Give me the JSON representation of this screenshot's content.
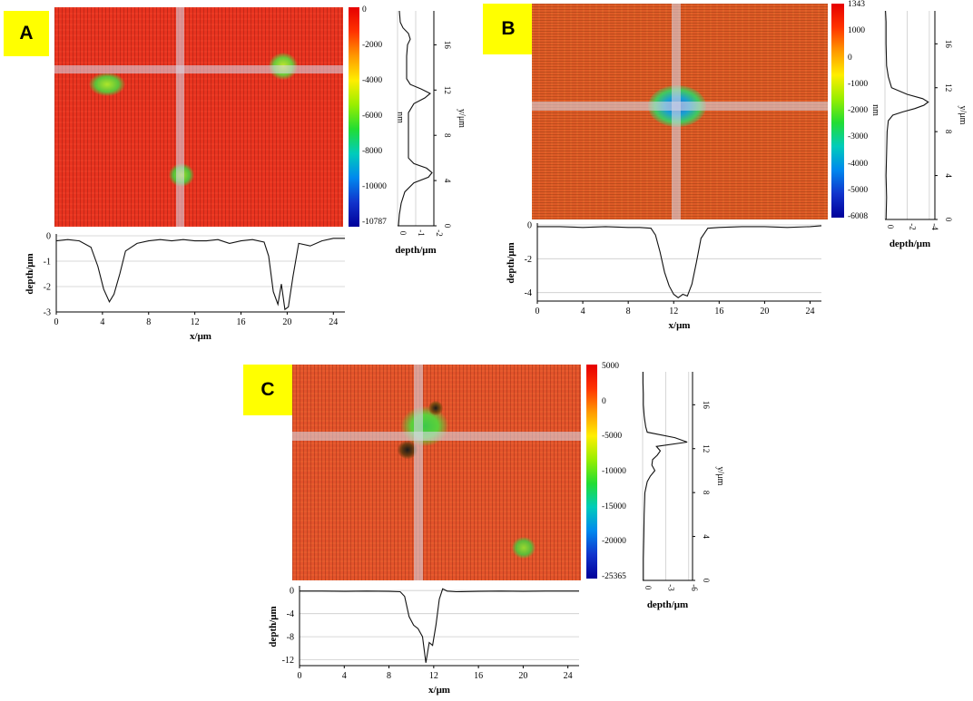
{
  "colors": {
    "map_red": "#e8331f",
    "map_orange": "#dd5a26",
    "crosshair": "#d8d8e6",
    "tag_yellow": "#ffff00",
    "grid": "#cccccc"
  },
  "colorbar": {
    "stops": [
      "#e60000",
      "#ff3300",
      "#ff9900",
      "#ffee00",
      "#99ee00",
      "#22dd33",
      "#00ccbb",
      "#0088ee",
      "#1133cc",
      "#000099"
    ]
  },
  "panels": [
    {
      "id": "A",
      "label": "A",
      "colorbar": {
        "ticks": [
          "0",
          "-2000",
          "-4000",
          "-6000",
          "-8000",
          "-10000",
          "-10787"
        ],
        "unit": "nm"
      },
      "chart_data": [
        {
          "type": "line",
          "name": "horizontal-profile",
          "xlabel": "x/μm",
          "ylabel": "depth/μm",
          "xlim": [
            0,
            25
          ],
          "ylim": [
            -3,
            0
          ],
          "xticks": [
            "0",
            "4",
            "8",
            "12",
            "16",
            "20",
            "24"
          ],
          "yticks": [
            "0",
            "-1",
            "-2",
            "-3"
          ],
          "x": [
            0,
            1,
            2,
            3,
            3.6,
            4.1,
            4.6,
            5.0,
            5.5,
            6.0,
            7,
            8,
            9,
            10,
            11,
            12,
            13,
            14,
            15,
            16,
            17,
            18,
            18.4,
            18.8,
            19.2,
            19.5,
            19.8,
            20.1,
            20.5,
            21,
            22,
            23,
            24,
            25
          ],
          "y": [
            -0.2,
            -0.15,
            -0.2,
            -0.45,
            -1.2,
            -2.1,
            -2.6,
            -2.3,
            -1.5,
            -0.6,
            -0.3,
            -0.2,
            -0.15,
            -0.2,
            -0.15,
            -0.2,
            -0.2,
            -0.15,
            -0.3,
            -0.2,
            -0.15,
            -0.25,
            -0.8,
            -2.2,
            -2.7,
            -1.9,
            -2.9,
            -2.8,
            -1.6,
            -0.3,
            -0.4,
            -0.2,
            -0.1,
            -0.1
          ]
        },
        {
          "type": "line",
          "name": "vertical-profile",
          "xlabel": "depth/μm",
          "ylabel": "y/μm",
          "xlim": [
            0,
            -2
          ],
          "ylim": [
            0,
            19
          ],
          "xticks": [
            "0",
            "-1",
            "-2"
          ],
          "yticks": [
            "0",
            "4",
            "8",
            "12",
            "16"
          ],
          "y": [
            0,
            1,
            2,
            3,
            3.8,
            4.3,
            4.7,
            5.1,
            5.5,
            6,
            7,
            8,
            9,
            10,
            10.8,
            11.3,
            11.7,
            12.1,
            12.5,
            13,
            14,
            15,
            16,
            16.5,
            17,
            17.5,
            18,
            19
          ],
          "x": [
            -0.05,
            -0.1,
            -0.2,
            -0.4,
            -0.9,
            -1.7,
            -1.9,
            -1.6,
            -0.9,
            -0.6,
            -0.6,
            -0.6,
            -0.6,
            -0.6,
            -0.9,
            -1.5,
            -1.8,
            -1.3,
            -0.7,
            -0.5,
            -0.5,
            -0.5,
            -0.55,
            -0.7,
            -0.6,
            -0.3,
            -0.15,
            -0.1
          ]
        }
      ]
    },
    {
      "id": "B",
      "label": "B",
      "colorbar": {
        "ticks": [
          "1343",
          "1000",
          "0",
          "-1000",
          "-2000",
          "-3000",
          "-4000",
          "-5000",
          "-6008"
        ],
        "unit": "nm"
      },
      "chart_data": [
        {
          "type": "line",
          "name": "horizontal-profile",
          "xlabel": "x/μm",
          "ylabel": "depth/μm",
          "xlim": [
            0,
            25
          ],
          "ylim": [
            -4.5,
            0
          ],
          "xticks": [
            "0",
            "4",
            "8",
            "12",
            "16",
            "20",
            "24"
          ],
          "yticks": [
            "0",
            "-2",
            "-4"
          ],
          "x": [
            0,
            2,
            4,
            6,
            8,
            9,
            10,
            10.4,
            10.8,
            11.2,
            11.6,
            12.0,
            12.4,
            12.8,
            13.2,
            13.6,
            14.0,
            14.4,
            15,
            16,
            18,
            20,
            22,
            24,
            25
          ],
          "y": [
            -0.1,
            -0.1,
            -0.15,
            -0.1,
            -0.15,
            -0.15,
            -0.2,
            -0.6,
            -1.6,
            -2.8,
            -3.6,
            -4.1,
            -4.3,
            -4.1,
            -4.2,
            -3.5,
            -2.2,
            -0.8,
            -0.2,
            -0.15,
            -0.1,
            -0.1,
            -0.15,
            -0.1,
            -0.05
          ]
        },
        {
          "type": "line",
          "name": "vertical-profile",
          "xlabel": "depth/μm",
          "ylabel": "y/μm",
          "xlim": [
            0,
            -4.5
          ],
          "ylim": [
            0,
            19
          ],
          "xticks": [
            "0",
            "-2",
            "-4"
          ],
          "yticks": [
            "0",
            "4",
            "8",
            "12",
            "16"
          ],
          "y": [
            0,
            2,
            4,
            6,
            8,
            9,
            9.5,
            9.8,
            10.1,
            10.4,
            10.7,
            11.0,
            11.4,
            12,
            13,
            14,
            16,
            18,
            19
          ],
          "x": [
            -0.1,
            -0.15,
            -0.1,
            -0.15,
            -0.2,
            -0.3,
            -0.7,
            -1.6,
            -2.7,
            -3.5,
            -3.9,
            -3.4,
            -2.0,
            -0.6,
            -0.3,
            -0.15,
            -0.1,
            -0.1,
            -0.05
          ]
        }
      ]
    },
    {
      "id": "C",
      "label": "C",
      "colorbar": {
        "ticks": [
          "5000",
          "0",
          "-5000",
          "-10000",
          "-15000",
          "-20000",
          "-25365"
        ],
        "unit": ""
      },
      "chart_data": [
        {
          "type": "line",
          "name": "horizontal-profile",
          "xlabel": "x/μm",
          "ylabel": "depth/μm",
          "xlim": [
            0,
            25
          ],
          "ylim": [
            -13,
            0.5
          ],
          "xticks": [
            "0",
            "4",
            "8",
            "12",
            "16",
            "20",
            "24"
          ],
          "yticks": [
            "0",
            "-4",
            "-8",
            "-12"
          ],
          "x": [
            0,
            2,
            4,
            6,
            8,
            9,
            9.4,
            9.8,
            10.2,
            10.6,
            11.0,
            11.3,
            11.6,
            11.9,
            12.2,
            12.5,
            12.8,
            13.2,
            14,
            16,
            18,
            20,
            22,
            24,
            25
          ],
          "y": [
            -0.1,
            -0.1,
            -0.15,
            -0.1,
            -0.15,
            -0.2,
            -1.0,
            -4.5,
            -6.0,
            -6.6,
            -8.0,
            -12.5,
            -9.0,
            -9.5,
            -6.0,
            -1.5,
            0.3,
            -0.1,
            -0.2,
            -0.15,
            -0.1,
            -0.15,
            -0.1,
            -0.1,
            -0.1
          ]
        },
        {
          "type": "line",
          "name": "vertical-profile",
          "xlabel": "depth/μm",
          "ylabel": "y/μm",
          "xlim": [
            0,
            -6.5
          ],
          "ylim": [
            0,
            19
          ],
          "xticks": [
            "0",
            "-3",
            "-6"
          ],
          "yticks": [
            "0",
            "4",
            "8",
            "12",
            "16"
          ],
          "y": [
            0,
            2,
            4,
            6,
            8,
            9,
            9.5,
            10,
            10.5,
            11,
            11.4,
            11.8,
            12.2,
            12.6,
            13,
            13.5,
            14,
            14.5,
            15,
            16,
            17,
            18,
            19
          ],
          "x": [
            -0.1,
            -0.1,
            -0.15,
            -0.2,
            -0.3,
            -0.6,
            -1.0,
            -1.6,
            -1.2,
            -1.3,
            -1.9,
            -2.3,
            -1.8,
            -5.8,
            -4.2,
            -0.6,
            -0.4,
            -0.3,
            -0.2,
            -0.1,
            -0.1,
            -0.05,
            -0.05
          ]
        }
      ]
    }
  ]
}
